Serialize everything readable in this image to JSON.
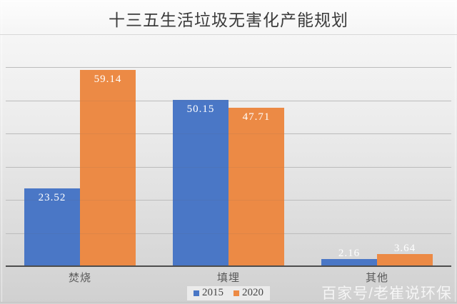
{
  "title": "十三五生活垃圾无害化产能规划",
  "watermark": "百家号/老崔说环保",
  "colors": {
    "series_2015": "#4a77c6",
    "series_2020": "#ec8a45",
    "background_top": "#fdfdfd",
    "background_bottom": "#d0d0d0",
    "gridline": "#c7c7c7",
    "axis_line": "#4d4d4d",
    "title_text": "#3b3b3b",
    "category_text": "#595959",
    "value_label_text": "#ffffff",
    "legend_background": "#ebebeb"
  },
  "chart_data": {
    "type": "bar",
    "title": "十三五生活垃圾无害化产能规划",
    "categories": [
      "焚烧",
      "填埋",
      "其他"
    ],
    "series": [
      {
        "name": "2015",
        "color": "#4a77c6",
        "values": [
          23.52,
          50.15,
          2.16
        ]
      },
      {
        "name": "2020",
        "color": "#ec8a45",
        "values": [
          59.14,
          47.71,
          3.64
        ]
      }
    ],
    "data_labels": [
      "23.52",
      "59.14",
      "50.15",
      "47.71",
      "2.16",
      "3.64"
    ],
    "xlabel": "",
    "ylabel": "",
    "ylim": [
      0,
      60
    ],
    "grid_interval": 10,
    "grid": "on",
    "legend_position": "bottom-center",
    "value_labels_visible": true,
    "y_tick_labels_visible": false
  },
  "legend": {
    "items": [
      {
        "label": "2015"
      },
      {
        "label": "2020"
      }
    ]
  }
}
